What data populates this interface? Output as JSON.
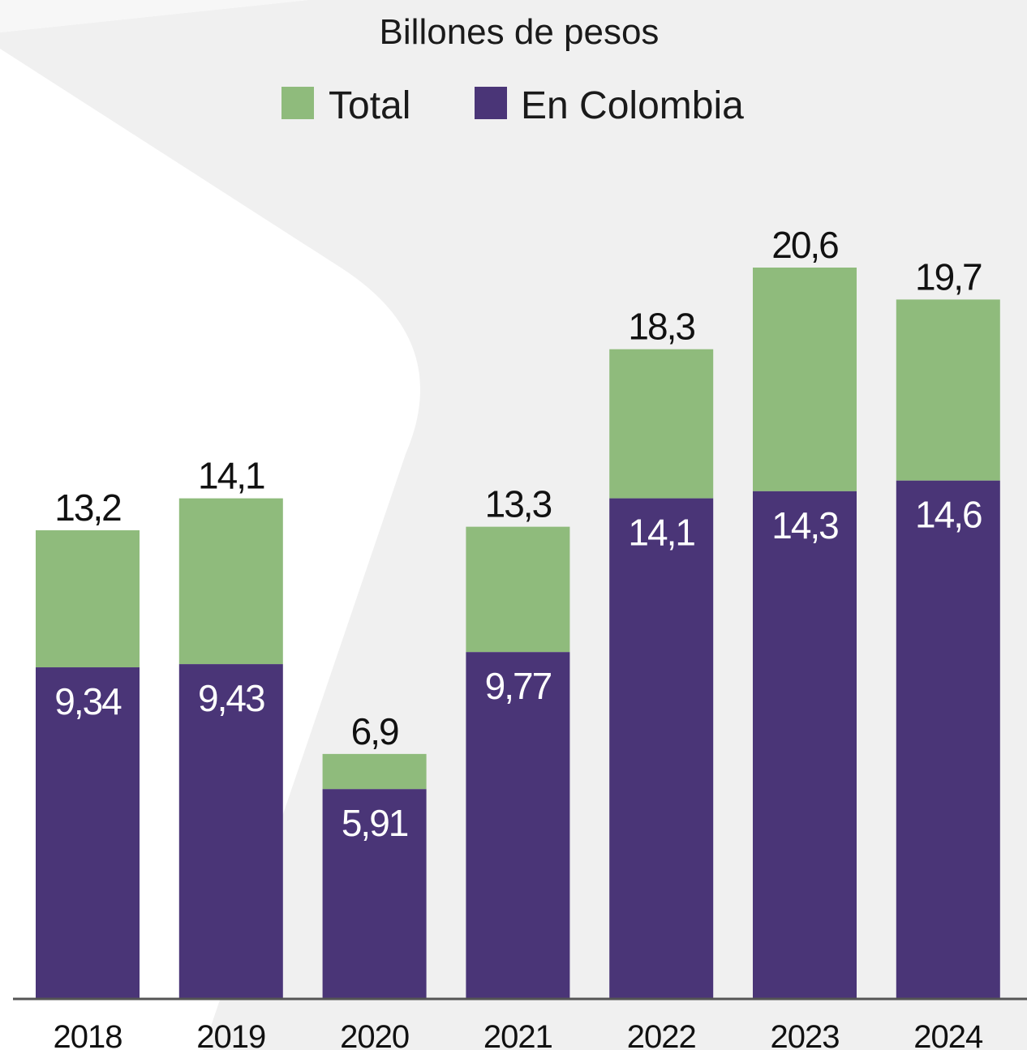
{
  "title": "Billones de pesos",
  "colors": {
    "total": "#8fbb7c",
    "colombia": "#4a3577",
    "axis": "#555555",
    "background_shape": "#ececec"
  },
  "legend": {
    "total_label": "Total",
    "colombia_label": "En Colombia"
  },
  "chart_data": {
    "type": "bar",
    "stacked": true,
    "title": "Billones de pesos",
    "categories": [
      "2018",
      "2019",
      "2020",
      "2021",
      "2022",
      "2023",
      "2024"
    ],
    "series": [
      {
        "name": "En Colombia",
        "values": [
          9.34,
          9.43,
          5.91,
          9.77,
          14.1,
          14.3,
          14.6
        ]
      },
      {
        "name": "Total",
        "values": [
          13.2,
          14.1,
          6.9,
          13.3,
          18.3,
          20.6,
          19.7
        ]
      }
    ],
    "value_labels": {
      "total": [
        "13,2",
        "14,1",
        "6,9",
        "13,3",
        "18,3",
        "20,6",
        "19,7"
      ],
      "colombia": [
        "9,34",
        "9,43",
        "5,91",
        "9,77",
        "14,1",
        "14,3",
        "14,6"
      ]
    },
    "ylim": [
      0,
      20.6
    ],
    "grid": false,
    "legend_position": "top-center"
  }
}
